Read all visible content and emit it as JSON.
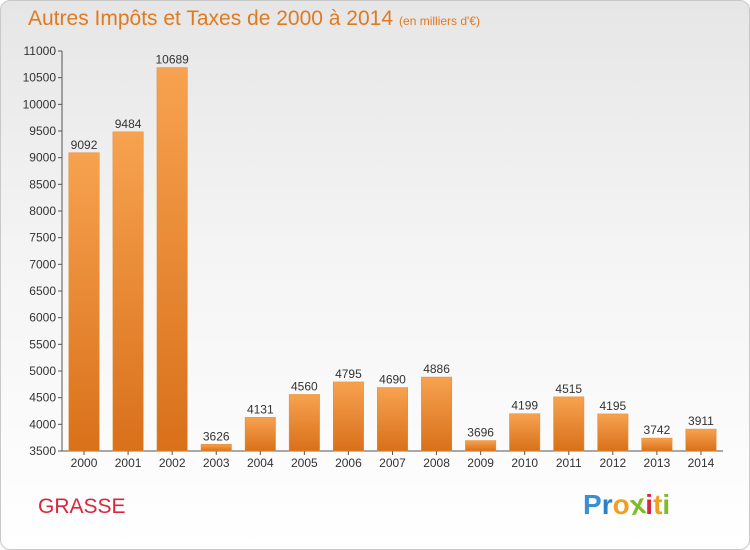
{
  "title": "Autres Impôts et Taxes de 2000 à 2014",
  "subtitle": "(en milliers d'€)",
  "city": "GRASSE",
  "logo": {
    "letters": [
      "P",
      "r",
      "o",
      "x",
      "i",
      "t",
      "i"
    ],
    "colors": [
      "#3a8fd4",
      "#2e7fc5",
      "#f0a020",
      "#7fba2a",
      "#d9263f",
      "#f0a020",
      "#7fba2a"
    ]
  },
  "colors": {
    "bar": "#f2902c",
    "bar_dark": "#d9701a",
    "title": "#e07a1f",
    "city": "#d9263f"
  },
  "chart_data": {
    "type": "bar",
    "title": "Autres Impôts et Taxes de 2000 à 2014",
    "categories": [
      "2000",
      "2001",
      "2002",
      "2003",
      "2004",
      "2005",
      "2006",
      "2007",
      "2008",
      "2009",
      "2010",
      "2011",
      "2012",
      "2013",
      "2014"
    ],
    "values": [
      9092,
      9484,
      10689,
      3626,
      4131,
      4560,
      4795,
      4690,
      4886,
      3696,
      4199,
      4515,
      4195,
      3742,
      3911
    ],
    "ylim": [
      3500,
      11000
    ],
    "yticks": [
      3500,
      4000,
      4500,
      5000,
      5500,
      6000,
      6500,
      7000,
      7500,
      8000,
      8500,
      9000,
      9500,
      10000,
      10500,
      11000
    ],
    "grid": false,
    "legend": "none"
  }
}
